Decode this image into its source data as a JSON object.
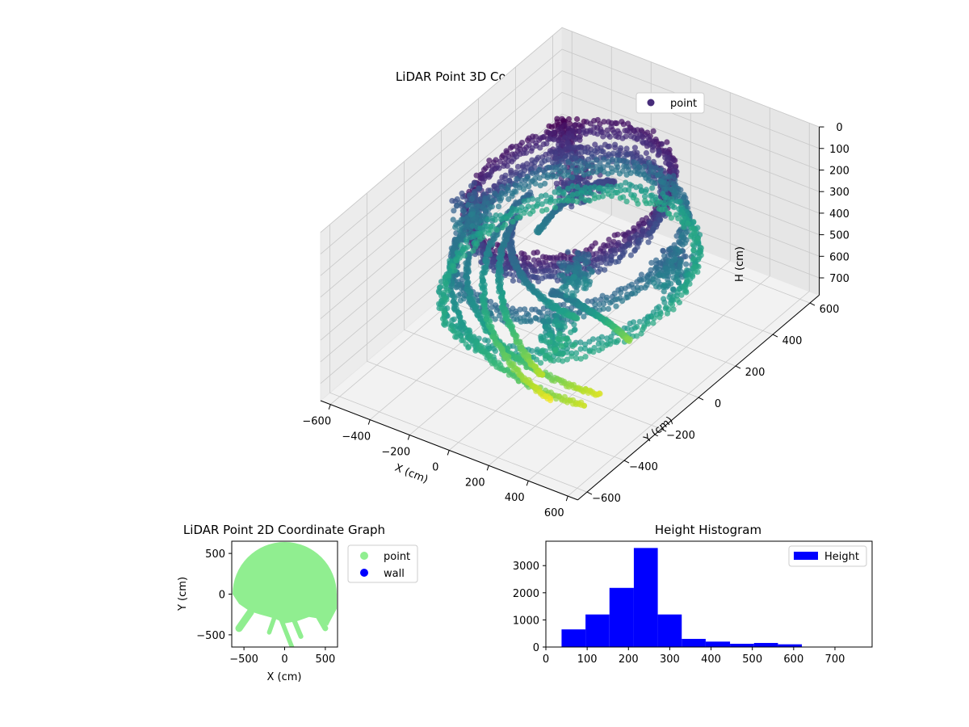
{
  "chart_data": [
    {
      "type": "scatter",
      "projection": "3d",
      "title": "LiDAR Point 3D Coordinate Graph",
      "xlabel": "X (cm)",
      "ylabel": "Y (cm)",
      "zlabel": "H (cm)",
      "xlim": [
        -650,
        650
      ],
      "ylim": [
        -650,
        650
      ],
      "zlim": [
        780,
        0
      ],
      "z_inverted": true,
      "xticks": [
        "−600",
        "−400",
        "−200",
        "0",
        "200",
        "400",
        "600"
      ],
      "yticks": [
        "−600",
        "−400",
        "−200",
        "0",
        "200",
        "400",
        "600"
      ],
      "zticks": [
        "0",
        "100",
        "200",
        "300",
        "400",
        "500",
        "600",
        "700"
      ],
      "colormap": "viridis (by height)",
      "grid": true,
      "legend": {
        "position": "top-right",
        "entries": [
          {
            "label": "point",
            "color": "#472c7a"
          }
        ]
      },
      "rings": [
        {
          "r": 380,
          "h": 40,
          "note": "dense ring near top"
        },
        {
          "r": 350,
          "h": 120
        },
        {
          "r": 430,
          "h": 250
        },
        {
          "r": 470,
          "h": 400
        }
      ],
      "arcs": [
        {
          "r": 440,
          "a0": 200,
          "a1": 320,
          "h0": 300,
          "h1": 720
        },
        {
          "r": 380,
          "a0": 210,
          "a1": 330,
          "h0": 320,
          "h1": 740
        },
        {
          "r": 320,
          "a0": 160,
          "a1": 300,
          "h0": 250,
          "h1": 760
        },
        {
          "r": 260,
          "a0": 180,
          "a1": 290,
          "h0": 260,
          "h1": 700
        },
        {
          "r": 300,
          "a0": 300,
          "a1": 360,
          "h0": 280,
          "h1": 640
        },
        {
          "r": 200,
          "a0": 80,
          "a1": 170,
          "h0": 150,
          "h1": 340
        },
        {
          "r": 220,
          "a0": 200,
          "a1": 320,
          "h0": 200,
          "h1": 480
        }
      ],
      "clusters": [
        {
          "x": -230,
          "y": 220,
          "h": 60,
          "spread": 50
        },
        {
          "x": -80,
          "y": 120,
          "h": 120,
          "spread": 70
        },
        {
          "x": 140,
          "y": -120,
          "h": 300,
          "spread": 50
        },
        {
          "x": 220,
          "y": -300,
          "h": 420,
          "spread": 60
        },
        {
          "x": 460,
          "y": 60,
          "h": 300,
          "spread": 60
        },
        {
          "x": -440,
          "y": -60,
          "h": 260,
          "spread": 60
        }
      ]
    },
    {
      "type": "scatter",
      "title": "LiDAR Point 2D Coordinate Graph",
      "xlabel": "X (cm)",
      "ylabel": "Y (cm)",
      "xlim": [
        -650,
        650
      ],
      "ylim": [
        -650,
        650
      ],
      "xticks": [
        "−500",
        "0",
        "500"
      ],
      "yticks": [
        "−500",
        "0",
        "500"
      ],
      "grid": false,
      "legend": {
        "position": "right-outside",
        "entries": [
          {
            "label": "point",
            "color": "#90ee90"
          },
          {
            "label": "wall",
            "color": "#0000ff"
          }
        ]
      },
      "region": {
        "dome_radius": 640,
        "dome_center_y": 0,
        "lower_polygon": [
          [
            -640,
            0
          ],
          [
            -560,
            -120
          ],
          [
            -430,
            -210
          ],
          [
            -300,
            -250
          ],
          [
            -120,
            -300
          ],
          [
            0,
            -360
          ],
          [
            160,
            -330
          ],
          [
            300,
            -280
          ],
          [
            420,
            -300
          ],
          [
            530,
            -390
          ],
          [
            560,
            -330
          ],
          [
            640,
            -180
          ],
          [
            640,
            0
          ]
        ],
        "legs": [
          {
            "x0": -40,
            "y0": -320,
            "x1": 90,
            "y1": -650,
            "w": 55
          },
          {
            "x0": 120,
            "y0": -330,
            "x1": 200,
            "y1": -520,
            "w": 60
          },
          {
            "x0": -130,
            "y0": -300,
            "x1": -190,
            "y1": -470,
            "w": 55
          },
          {
            "x0": -420,
            "y0": -220,
            "x1": -560,
            "y1": -420,
            "w": 90
          },
          {
            "x0": 420,
            "y0": -280,
            "x1": 500,
            "y1": -420,
            "w": 70
          }
        ]
      },
      "series": [
        {
          "name": "point",
          "color": "#90ee90"
        },
        {
          "name": "wall",
          "color": "#0000ff"
        }
      ]
    },
    {
      "type": "bar",
      "subtype": "histogram",
      "title": "Height Histogram",
      "xlabel": "",
      "ylabel": "",
      "xlim": [
        0,
        790
      ],
      "ylim": [
        0,
        3900
      ],
      "xticks": [
        0,
        100,
        200,
        300,
        400,
        500,
        600,
        700
      ],
      "yticks": [
        0,
        1000,
        2000,
        3000
      ],
      "bin_edges": [
        38,
        96,
        154,
        213,
        271,
        329,
        387,
        446,
        504,
        562,
        620,
        678,
        736,
        795
      ],
      "values": [
        650,
        1200,
        2180,
        3650,
        1200,
        300,
        200,
        120,
        150,
        100,
        0,
        0,
        0
      ],
      "color": "#0000ff",
      "grid": false,
      "legend": {
        "position": "top-right",
        "entries": [
          {
            "label": "Height",
            "color": "#0000ff"
          }
        ]
      }
    }
  ]
}
